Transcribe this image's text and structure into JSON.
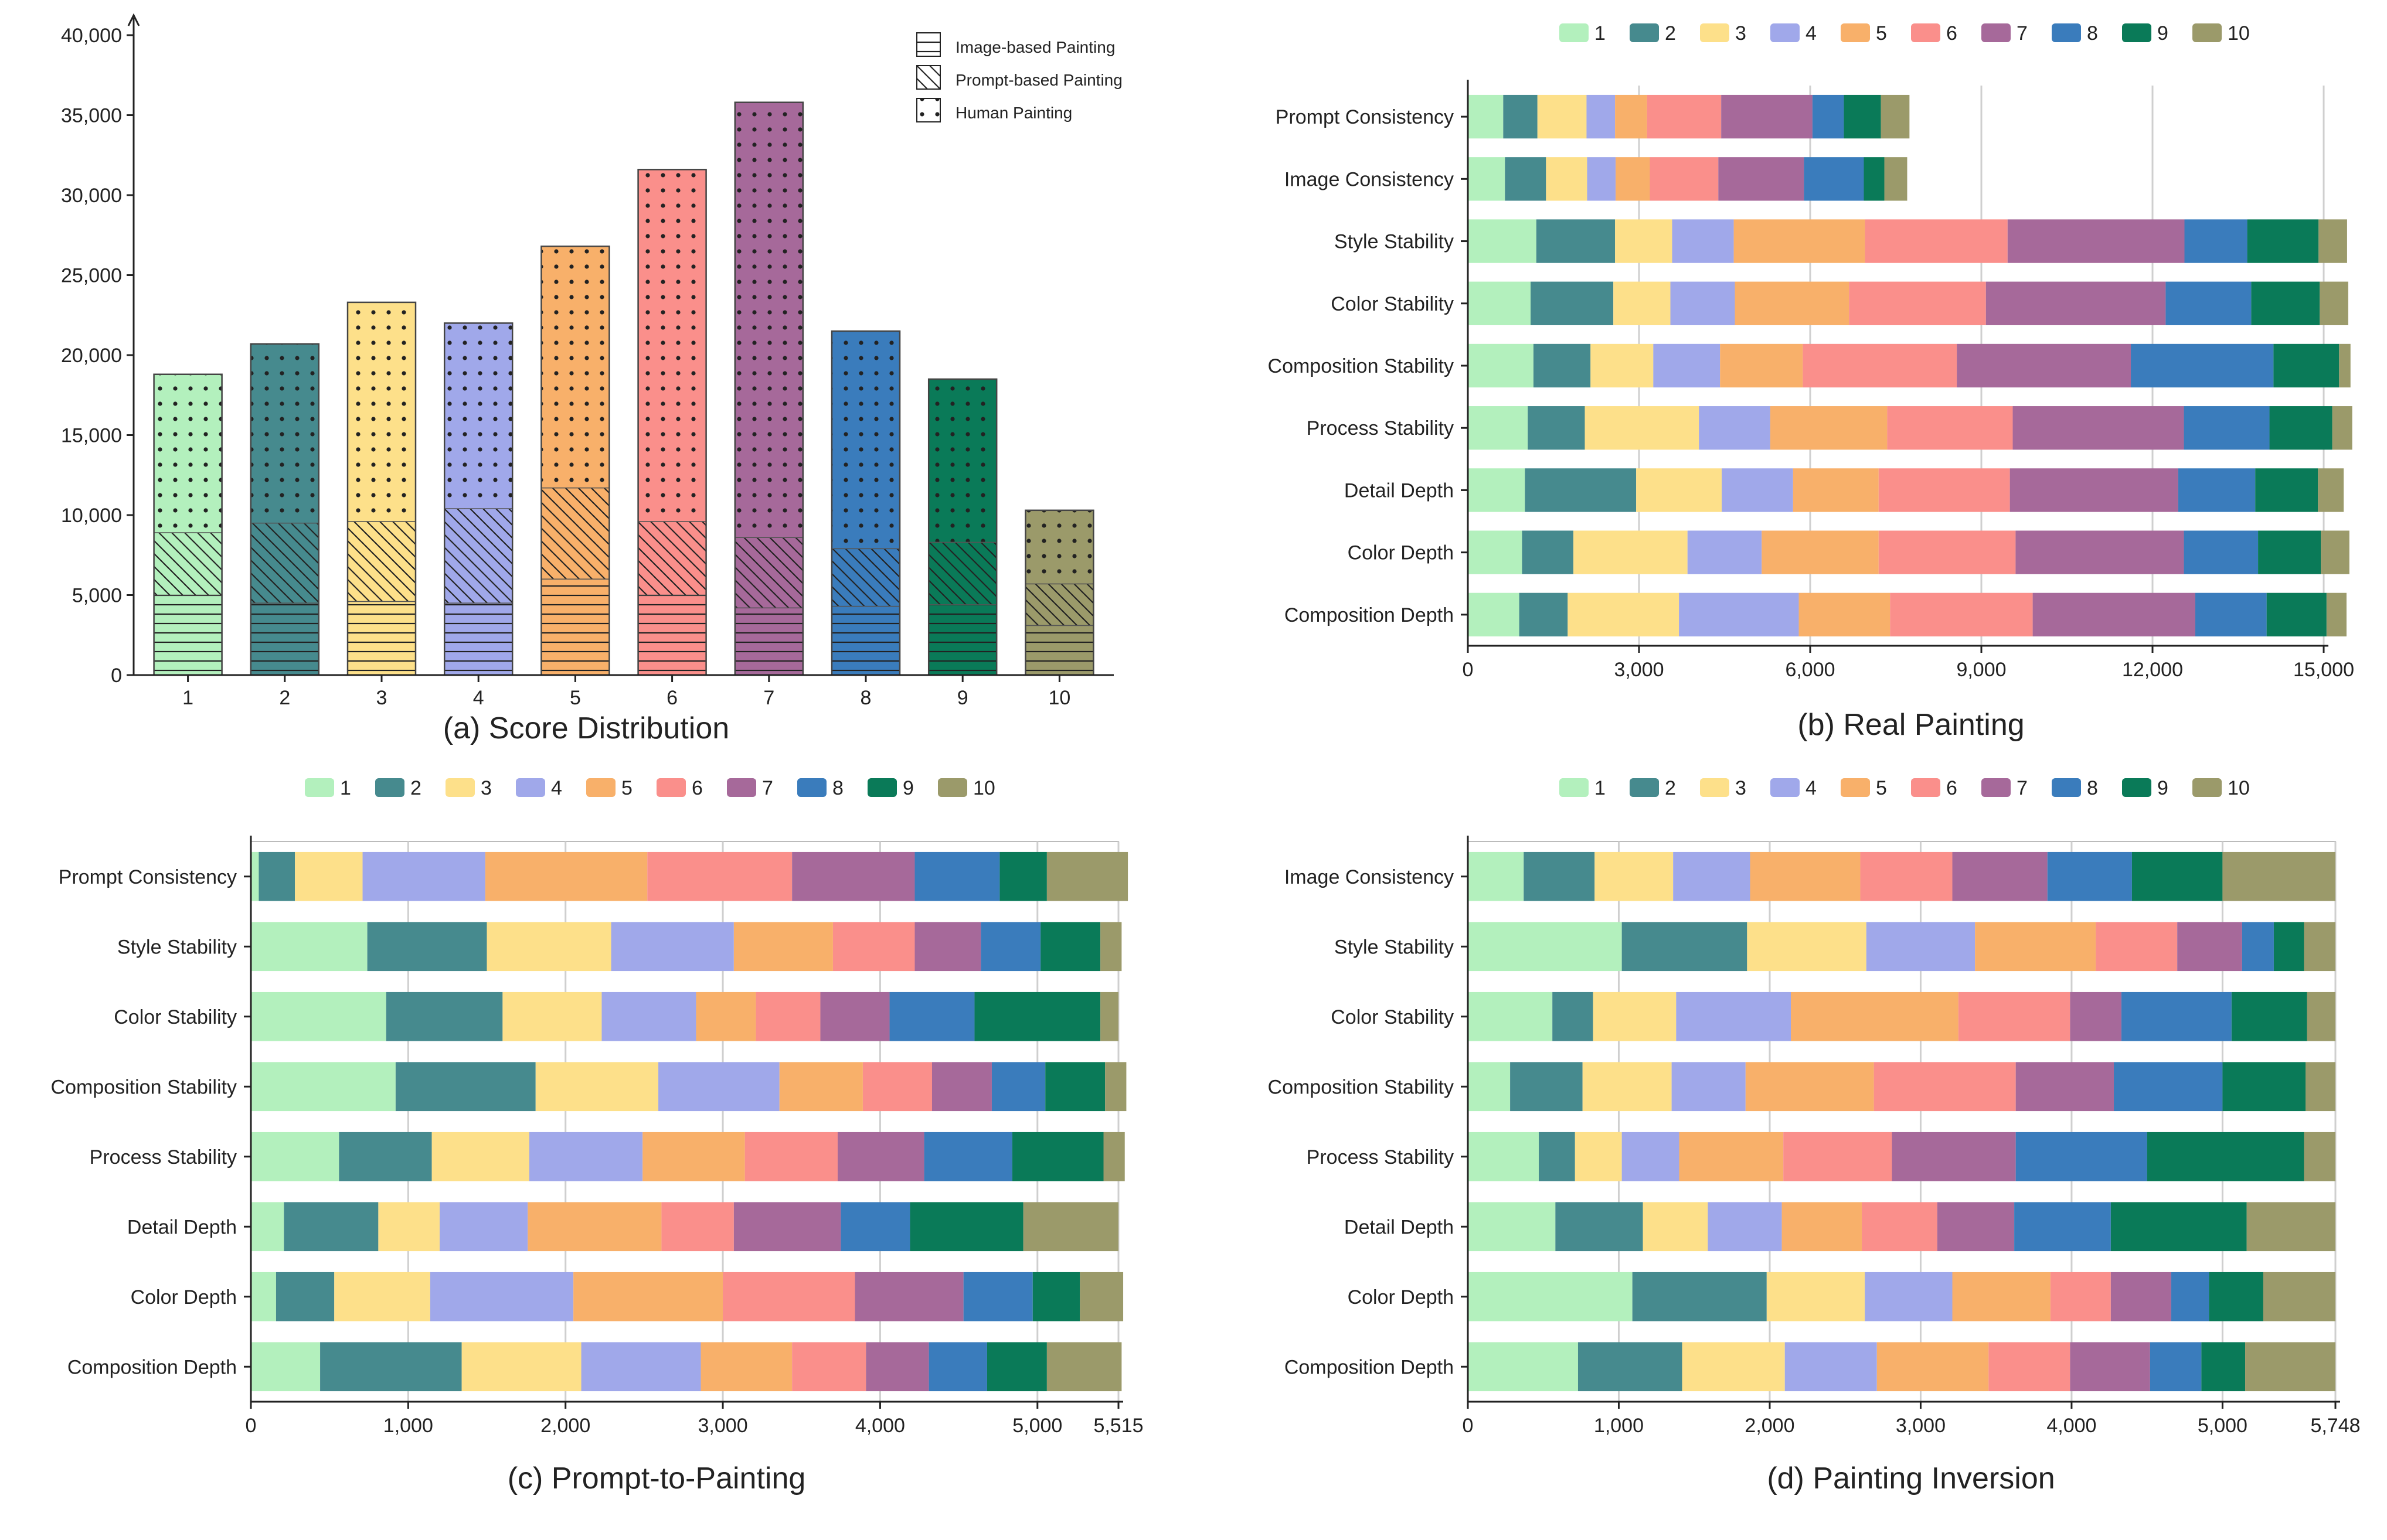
{
  "colors": {
    "1": "#b3f0bd",
    "2": "#468a8e",
    "3": "#fde08a",
    "4": "#a0a8ea",
    "5": "#f8b06a",
    "6": "#fa8f8b",
    "7": "#a6699a",
    "8": "#3a7cbc",
    "9": "#0a7a58",
    "10": "#9b9a6a"
  },
  "score_labels": [
    "1",
    "2",
    "3",
    "4",
    "5",
    "6",
    "7",
    "8",
    "9",
    "10"
  ],
  "chart_data": [
    {
      "type": "bar",
      "title": "(a) Score Distribution",
      "categories": [
        "1",
        "2",
        "3",
        "4",
        "5",
        "6",
        "7",
        "8",
        "9",
        "10"
      ],
      "stacked": true,
      "legend_position": "top-right",
      "ylim": [
        0,
        40000
      ],
      "yticks": [
        0,
        5000,
        10000,
        15000,
        20000,
        25000,
        30000,
        35000,
        40000
      ],
      "ytick_labels": [
        "0",
        "5,000",
        "10,000",
        "15,000",
        "20,000",
        "25,000",
        "30,000",
        "35,000",
        "40,000"
      ],
      "series": [
        {
          "name": "Image-based Painting",
          "pattern": "horizontal",
          "values": [
            5000,
            4500,
            4600,
            4500,
            6000,
            5000,
            4200,
            4300,
            4400,
            3100
          ]
        },
        {
          "name": "Prompt-based Painting",
          "pattern": "diagonal",
          "values": [
            3900,
            5000,
            5000,
            5900,
            5700,
            4600,
            4400,
            3600,
            3900,
            2600
          ]
        },
        {
          "name": "Human Painting",
          "pattern": "dots",
          "values": [
            9900,
            11200,
            13700,
            11600,
            15100,
            22000,
            27200,
            13600,
            10200,
            4600
          ]
        }
      ]
    },
    {
      "type": "bar",
      "orientation": "horizontal",
      "stacked": true,
      "title": "(b) Real Painting",
      "legend_position": "top",
      "xlim": [
        0,
        15000
      ],
      "xticks": [
        0,
        3000,
        6000,
        9000,
        12000,
        15000
      ],
      "xtick_labels": [
        "0",
        "3,000",
        "6,000",
        "9,000",
        "12,000",
        "15,000"
      ],
      "categories": [
        "Prompt Consistency",
        "Image Consistency",
        "Style Stability",
        "Color Stability",
        "Composition Stability",
        "Process Stability",
        "Detail Depth",
        "Color Depth",
        "Composition Depth"
      ],
      "series_values": [
        [
          620,
          600,
          860,
          500,
          560,
          1300,
          1600,
          550,
          650,
          500
        ],
        [
          650,
          720,
          720,
          500,
          600,
          1200,
          1500,
          1050,
          360,
          400
        ],
        [
          1200,
          1380,
          1000,
          1080,
          2300,
          2500,
          3100,
          1100,
          1250,
          500
        ],
        [
          1100,
          1450,
          1000,
          1130,
          2000,
          2400,
          3150,
          1500,
          1200,
          500
        ],
        [
          1150,
          1000,
          1100,
          1170,
          1450,
          2700,
          3050,
          2500,
          1150,
          200
        ],
        [
          1050,
          1000,
          2000,
          1250,
          2050,
          2200,
          3000,
          1500,
          1100,
          350
        ],
        [
          1000,
          1950,
          1500,
          1250,
          1500,
          2300,
          2950,
          1350,
          1100,
          450
        ],
        [
          950,
          900,
          2000,
          1300,
          2050,
          2400,
          2950,
          1300,
          1100,
          500
        ],
        [
          900,
          850,
          1950,
          2100,
          1600,
          2500,
          2850,
          1250,
          1050,
          350
        ]
      ]
    },
    {
      "type": "bar",
      "orientation": "horizontal",
      "stacked": true,
      "title": "(c) Prompt-to-Painting",
      "legend_position": "top",
      "xlim": [
        0,
        5515
      ],
      "xticks": [
        0,
        1000,
        2000,
        3000,
        4000,
        5000,
        5515
      ],
      "xtick_labels": [
        "0",
        "1,000",
        "2,000",
        "3,000",
        "4,000",
        "5,000",
        "5,515"
      ],
      "categories": [
        "Prompt Consistency",
        "Style Stability",
        "Color Stability",
        "Composition Stability",
        "Process Stability",
        "Detail Depth",
        "Color Depth",
        "Composition Depth"
      ],
      "series_values": [
        [
          50,
          230,
          430,
          780,
          1030,
          920,
          780,
          540,
          300,
          515
        ],
        [
          740,
          760,
          790,
          780,
          630,
          520,
          420,
          380,
          380,
          135
        ],
        [
          860,
          740,
          630,
          600,
          380,
          410,
          440,
          540,
          800,
          115
        ],
        [
          920,
          890,
          780,
          770,
          530,
          440,
          380,
          340,
          380,
          135
        ],
        [
          560,
          590,
          620,
          720,
          650,
          590,
          550,
          560,
          580,
          135
        ],
        [
          210,
          600,
          390,
          560,
          850,
          460,
          680,
          440,
          720,
          605
        ],
        [
          160,
          370,
          610,
          910,
          950,
          840,
          690,
          440,
          300,
          275
        ],
        [
          440,
          900,
          760,
          760,
          580,
          470,
          400,
          370,
          380,
          475
        ]
      ]
    },
    {
      "type": "bar",
      "orientation": "horizontal",
      "stacked": true,
      "title": "(d) Painting Inversion",
      "legend_position": "top",
      "xlim": [
        0,
        5748
      ],
      "xticks": [
        0,
        1000,
        2000,
        3000,
        4000,
        5000,
        5748
      ],
      "xtick_labels": [
        "0",
        "1,000",
        "2,000",
        "3,000",
        "4,000",
        "5,000",
        "5,748"
      ],
      "categories": [
        "Image Consistency",
        "Style Stability",
        "Color Stability",
        "Composition Stability",
        "Process Stability",
        "Detail Depth",
        "Color Depth",
        "Composition Depth"
      ],
      "series_values": [
        [
          370,
          470,
          520,
          510,
          730,
          610,
          630,
          560,
          600,
          748
        ],
        [
          1020,
          830,
          790,
          720,
          800,
          540,
          430,
          210,
          200,
          208
        ],
        [
          560,
          270,
          550,
          760,
          1110,
          740,
          340,
          730,
          500,
          188
        ],
        [
          280,
          480,
          590,
          490,
          850,
          940,
          650,
          720,
          550,
          198
        ],
        [
          470,
          240,
          310,
          380,
          690,
          720,
          820,
          870,
          1040,
          208
        ],
        [
          580,
          580,
          430,
          490,
          530,
          500,
          510,
          640,
          900,
          588
        ],
        [
          1090,
          890,
          650,
          580,
          650,
          400,
          400,
          250,
          360,
          478
        ],
        [
          730,
          690,
          680,
          610,
          740,
          540,
          530,
          340,
          290,
          598
        ]
      ]
    }
  ]
}
